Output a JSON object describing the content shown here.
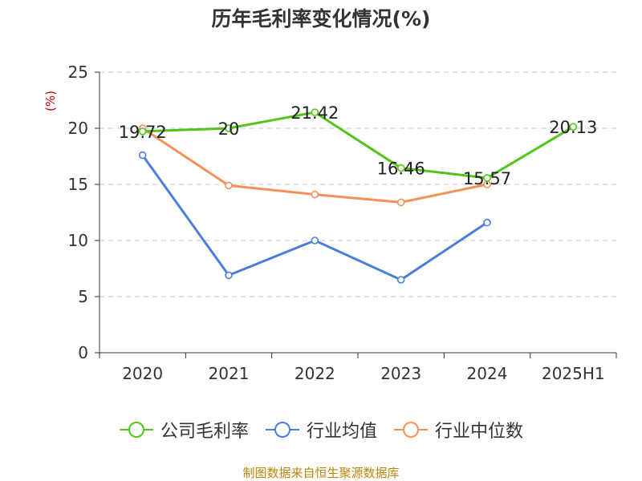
{
  "title": "历年毛利率变化情况(%)",
  "source": "制图数据来自恒生聚源数据库",
  "chart_data": {
    "type": "line",
    "title": "历年毛利率变化情况(%)",
    "ylabel": "(%)",
    "xlabel": "",
    "categories": [
      "2020",
      "2021",
      "2022",
      "2023",
      "2024",
      "2025H1"
    ],
    "ylim": [
      0,
      25
    ],
    "yticks": [
      0,
      5,
      10,
      15,
      20,
      25
    ],
    "grid": "horizontal dashed",
    "legend_position": "bottom",
    "series": [
      {
        "name": "公司毛利率",
        "color": "#52c41a",
        "values": [
          19.72,
          20,
          21.42,
          16.46,
          15.57,
          20.13
        ],
        "labels": [
          "19.72",
          "20",
          "21.42",
          "16.46",
          "15.57",
          "20.13"
        ]
      },
      {
        "name": "行业均值",
        "color": "#4a7fd8",
        "values": [
          17.6,
          6.9,
          10.0,
          6.5,
          11.6,
          null
        ]
      },
      {
        "name": "行业中位数",
        "color": "#f4915a",
        "values": [
          20.0,
          14.9,
          14.1,
          13.4,
          15.0,
          null
        ]
      }
    ]
  }
}
